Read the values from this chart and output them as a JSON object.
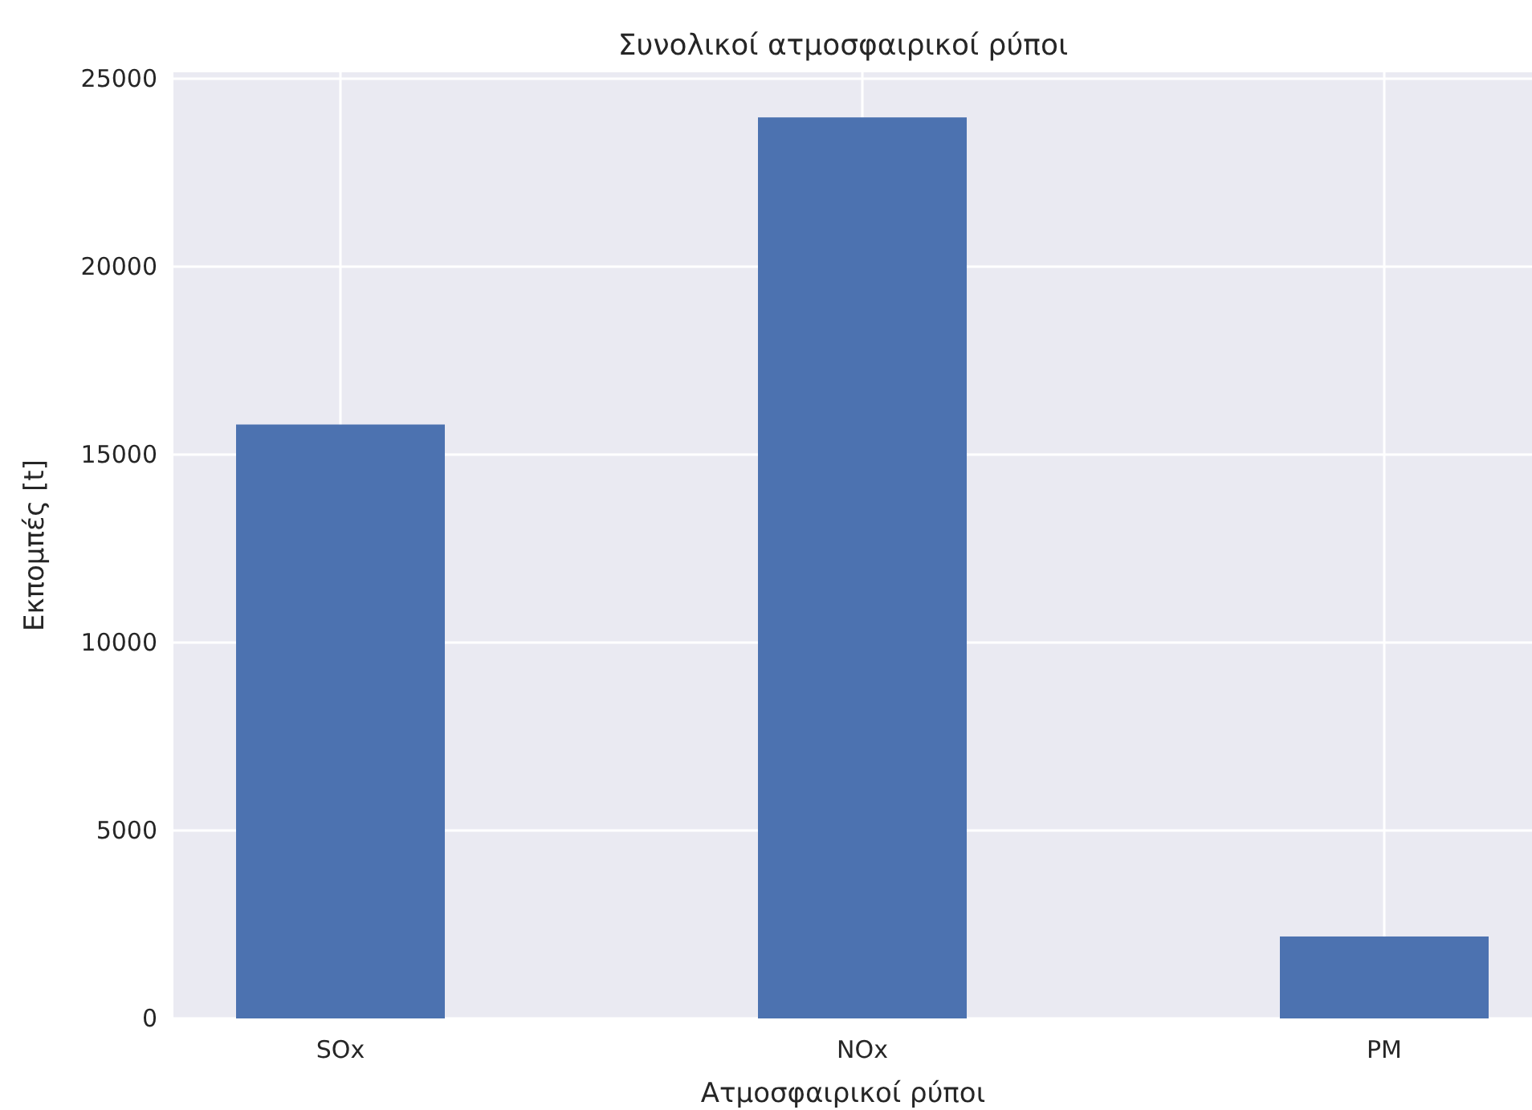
{
  "chart_data": {
    "type": "bar",
    "title": "Συνολικοί ατμοσφαιρικοί ρύποι",
    "xlabel": "Ατμοσφαιρικοί ρύποι",
    "ylabel": "Εκπομπές [t]",
    "categories": [
      "SOx",
      "NOx",
      "PM"
    ],
    "values": [
      15800,
      23970,
      2180
    ],
    "color": "#4c72b0",
    "ylim": [
      0,
      25170
    ],
    "yticks": [
      0,
      5000,
      10000,
      15000,
      20000,
      25000
    ],
    "grid": true
  }
}
